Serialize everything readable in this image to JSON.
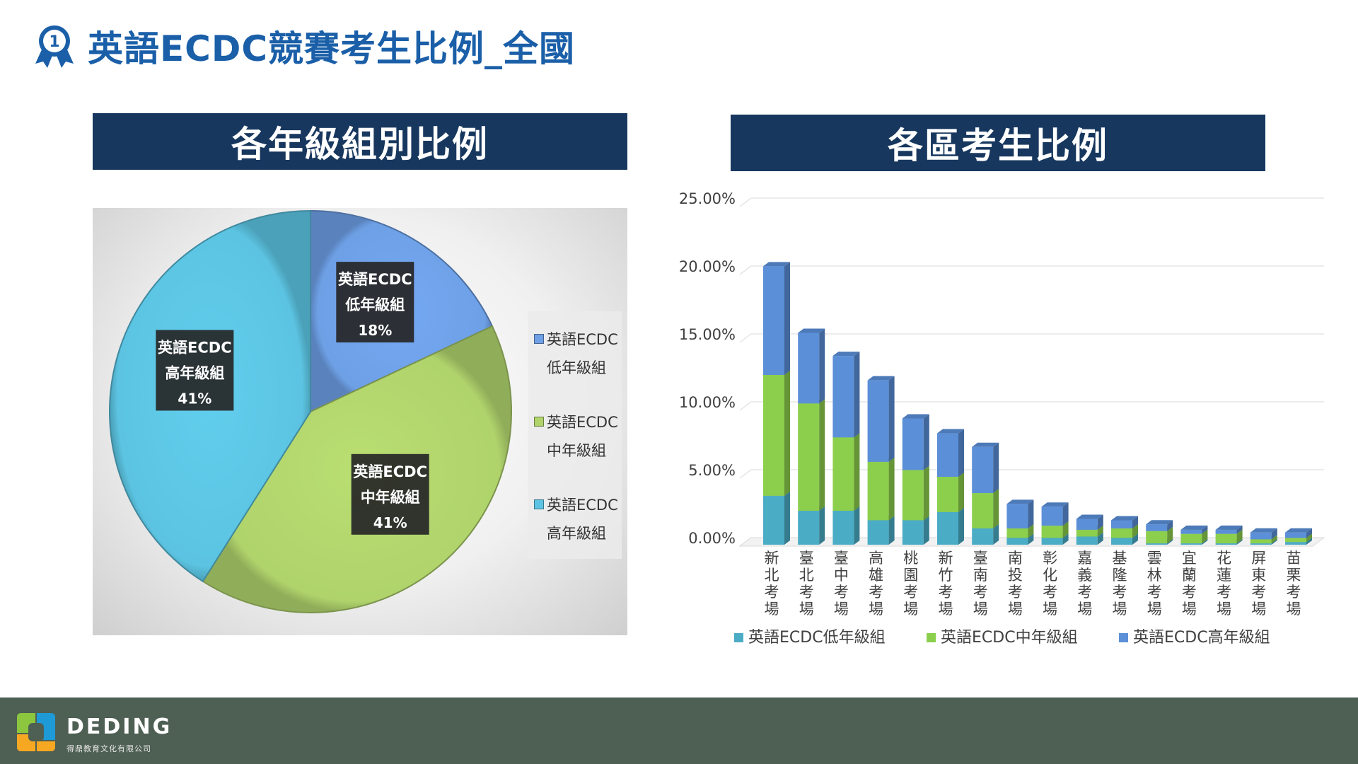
{
  "page": {
    "title": "英語ECDC競賽考生比例_全國",
    "badge_number": "1",
    "accent_color": "#1a5fa8",
    "header_color": "#17375e"
  },
  "left_section": {
    "title": "各年級組別比例"
  },
  "right_section": {
    "title": "各區考生比例"
  },
  "footer": {
    "brand": "DEDING",
    "subtitle": "得鼎教育文化有限公司",
    "background": "#4e5f53"
  },
  "chart_data": [
    {
      "type": "pie",
      "title": "",
      "slices": [
        {
          "legend": "英語ECDC\n低年級組",
          "label_lines": [
            "英語ECDC",
            "低年級組",
            "18%"
          ],
          "value": 18,
          "color": "#6ea0e6"
        },
        {
          "legend": "英語ECDC\n中年級組",
          "label_lines": [
            "英語ECDC",
            "中年級組",
            "41%"
          ],
          "value": 41,
          "color": "#b0d36c"
        },
        {
          "legend": "英語ECDC\n高年級組",
          "label_lines": [
            "英語ECDC",
            "高年級組",
            "41%"
          ],
          "value": 41,
          "color": "#5cc4e2"
        }
      ],
      "legend_placement": "right"
    },
    {
      "type": "bar",
      "stacked": true,
      "title": "",
      "categories": [
        "新北考場",
        "臺北考場",
        "臺中考場",
        "高雄考場",
        "桃園考場",
        "新竹考場",
        "臺南考場",
        "南投考場",
        "彰化考場",
        "嘉義考場",
        "基隆考場",
        "雲林考場",
        "宜蘭考場",
        "花蓮考場",
        "屏東考場",
        "苗栗考場"
      ],
      "series": [
        {
          "name": "英語ECDC低年級組",
          "color": "#4bacc6",
          "values": [
            3.6,
            2.5,
            2.5,
            1.8,
            1.8,
            2.4,
            1.2,
            0.5,
            0.5,
            0.6,
            0.5,
            0.1,
            0.1,
            0.1,
            0.1,
            0.2
          ]
        },
        {
          "name": "英語ECDC中年級組",
          "color": "#8ccf4d",
          "values": [
            8.9,
            7.9,
            5.4,
            4.3,
            3.7,
            2.6,
            2.6,
            0.7,
            0.9,
            0.5,
            0.7,
            0.9,
            0.7,
            0.7,
            0.3,
            0.3
          ]
        },
        {
          "name": "英語ECDC高年級組",
          "color": "#5b8fd8",
          "values": [
            8.0,
            5.2,
            6.0,
            6.0,
            3.8,
            3.2,
            3.4,
            1.8,
            1.4,
            0.8,
            0.6,
            0.5,
            0.3,
            0.3,
            0.5,
            0.4
          ]
        }
      ],
      "yticks": [
        "0.00%",
        "5.00%",
        "10.00%",
        "15.00%",
        "20.00%",
        "25.00%"
      ],
      "ylim": [
        0,
        25
      ],
      "grid": true,
      "legend_placement": "bottom"
    }
  ]
}
